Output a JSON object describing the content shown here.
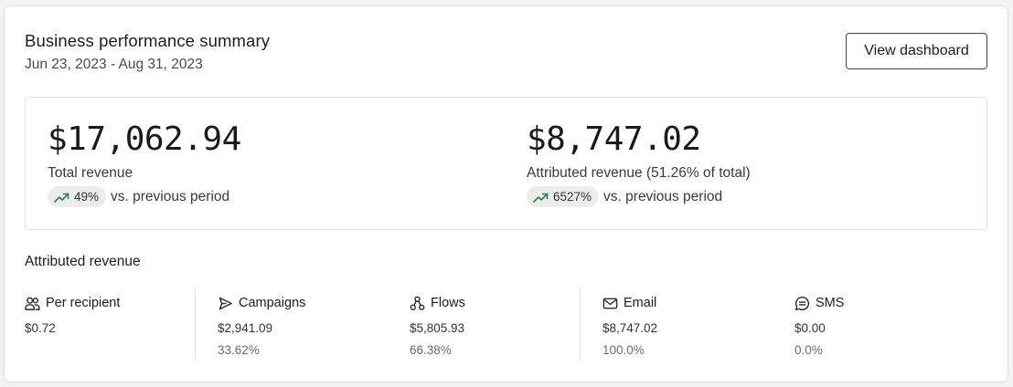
{
  "header": {
    "title": "Business performance summary",
    "date_range": "Jun 23, 2023 - Aug 31, 2023",
    "view_button_label": "View dashboard"
  },
  "summary": {
    "total": {
      "value": "$17,062.94",
      "label": "Total revenue",
      "change": "49%",
      "change_suffix": "vs. previous period",
      "trend_icon": "trending-up-icon"
    },
    "attributed": {
      "value": "$8,747.02",
      "label": "Attributed revenue (51.26% of total)",
      "change": "6527%",
      "change_suffix": "vs. previous period",
      "trend_icon": "trending-up-icon"
    }
  },
  "attributed_section": {
    "heading": "Attributed revenue",
    "stats": [
      {
        "label": "Per recipient",
        "icon": "users-icon",
        "value": "$0.72",
        "pct": ""
      },
      {
        "label": "Campaigns",
        "icon": "send-icon",
        "value": "$2,941.09",
        "pct": "33.62%"
      },
      {
        "label": "Flows",
        "icon": "flows-icon",
        "value": "$5,805.93",
        "pct": "66.38%"
      },
      {
        "label": "Email",
        "icon": "mail-icon",
        "value": "$8,747.02",
        "pct": "100.0%"
      },
      {
        "label": "SMS",
        "icon": "sms-icon",
        "value": "$0.00",
        "pct": "0.0%"
      }
    ]
  },
  "colors": {
    "trend_up": "#2e7d4f",
    "pill_bg": "#ececec",
    "border": "#e3e3e3"
  }
}
